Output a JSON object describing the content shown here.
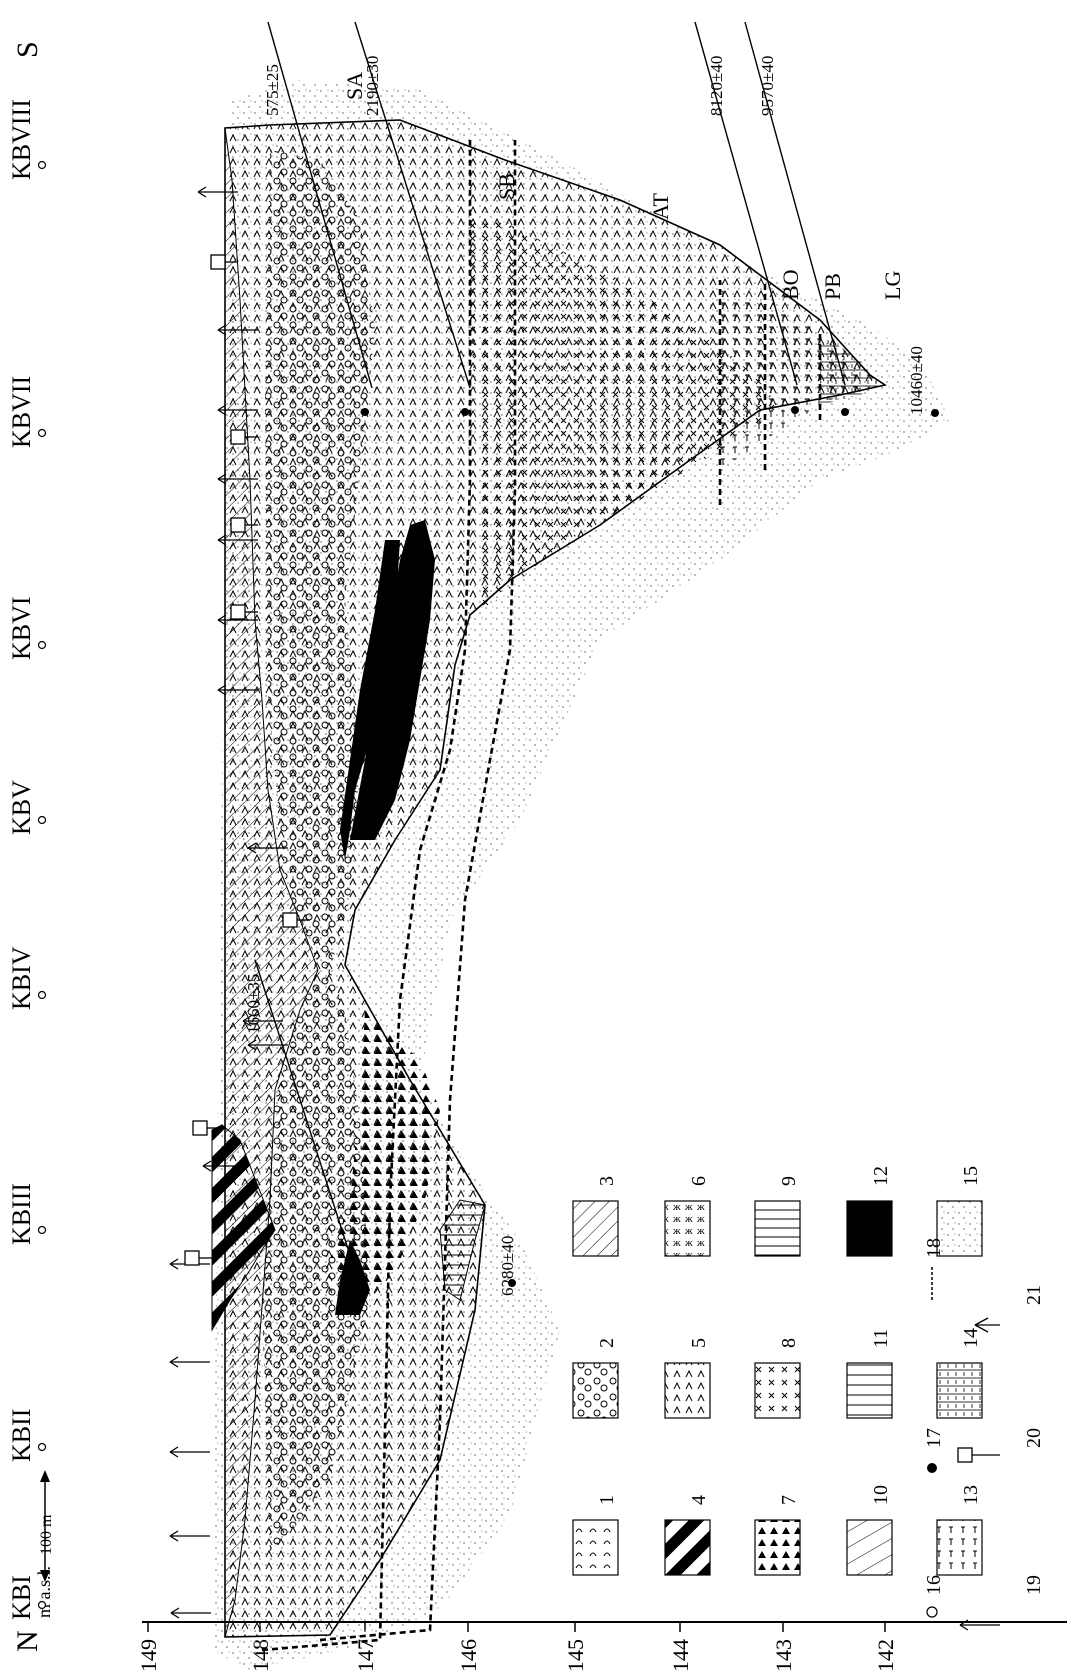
{
  "orientation": {
    "north": "N",
    "south": "S"
  },
  "axis": {
    "unit_label": "m a.s.l.",
    "ticks": [
      "149",
      "148",
      "147",
      "146",
      "145",
      "144",
      "143",
      "142"
    ]
  },
  "scale_bar": "100 m",
  "boreholes": [
    "KBI",
    "KBII",
    "KBIII",
    "KBIV",
    "KBV",
    "KBVI",
    "KBVII",
    "KBVIII"
  ],
  "dates": [
    "575±25",
    "2190±30",
    "8120±40",
    "9570±40",
    "10460±40",
    "1660±35",
    "6280±40"
  ],
  "zones": [
    "SA",
    "SB",
    "AT",
    "BO",
    "PB",
    "LG"
  ],
  "legend": {
    "numbers": [
      "1",
      "2",
      "3",
      "4",
      "5",
      "6",
      "7",
      "8",
      "9",
      "10",
      "11",
      "12",
      "13",
      "14",
      "15",
      "16",
      "17",
      "18",
      "19",
      "20",
      "21"
    ]
  },
  "colors": {
    "ink": "#000000",
    "paper": "#ffffff",
    "stipple": "#8a8a8a"
  }
}
